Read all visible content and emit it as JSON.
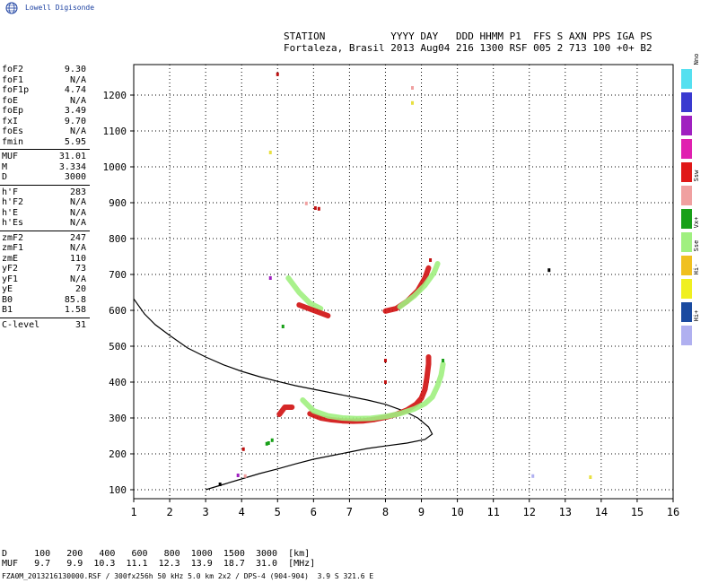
{
  "logo": {
    "text": "Lowell Digisonde"
  },
  "header": {
    "line1": "STATION           YYYY DAY   DDD HHMM P1  FFS S AXN PPS IGA PS",
    "line2": "Fortaleza, Brasil 2013 Aug04 216 1300 RSF 005 2 713 100 +0+ B2"
  },
  "params": {
    "group1": [
      {
        "name": "foF2",
        "value": "9.30"
      },
      {
        "name": "foF1",
        "value": "N/A"
      },
      {
        "name": "foF1p",
        "value": "4.74"
      },
      {
        "name": "foE",
        "value": "N/A"
      },
      {
        "name": "foEp",
        "value": "3.49"
      },
      {
        "name": "fxI",
        "value": "9.70"
      },
      {
        "name": "foEs",
        "value": "N/A"
      },
      {
        "name": "fmin",
        "value": "5.95"
      }
    ],
    "group2": [
      {
        "name": "MUF",
        "value": "31.01"
      },
      {
        "name": "M",
        "value": "3.334"
      },
      {
        "name": "D",
        "value": "3000"
      }
    ],
    "group3": [
      {
        "name": "h'F",
        "value": "283"
      },
      {
        "name": "h'F2",
        "value": "N/A"
      },
      {
        "name": "h'E",
        "value": "N/A"
      },
      {
        "name": "h'Es",
        "value": "N/A"
      }
    ],
    "group4": [
      {
        "name": "zmF2",
        "value": "247"
      },
      {
        "name": "zmF1",
        "value": "N/A"
      },
      {
        "name": "zmE",
        "value": "110"
      },
      {
        "name": "yF2",
        "value": "73"
      },
      {
        "name": "yF1",
        "value": "N/A"
      },
      {
        "name": "yE",
        "value": "20"
      },
      {
        "name": "B0",
        "value": "85.8"
      },
      {
        "name": "B1",
        "value": "1.58"
      }
    ],
    "group5": [
      {
        "name": "C-level",
        "value": "31"
      }
    ]
  },
  "legend": [
    {
      "label": "Nno",
      "color": "#55e0f0"
    },
    {
      "label": "E",
      "color": "#3a3ad0"
    },
    {
      "label": "W",
      "color": "#a020c0"
    },
    {
      "label": "Vo-",
      "color": "#e020b0"
    },
    {
      "label": "Vo+",
      "color": "#e01818"
    },
    {
      "label": "Ssw",
      "color": "#f0a0a0"
    },
    {
      "label": "Vx-",
      "color": "#18a018"
    },
    {
      "label": "Vx+",
      "color": "#a0f080"
    },
    {
      "label": "Sse",
      "color": "#f0c020"
    },
    {
      "label": "Hi-",
      "color": "#f0f020"
    },
    {
      "label": "Nnw",
      "color": "#1a4aa0"
    },
    {
      "label": "Hi+",
      "color": "#b0b0f0"
    }
  ],
  "distance_table": {
    "line1": "D     100   200   400   600   800  1000  1500  3000  [km]",
    "line2": "MUF   9.7   9.9  10.3  11.1  12.3  13.9  18.7  31.0  [MHz]"
  },
  "footer": "FZA0M_2013216130000.RSF / 300fx256h 50 kHz 5.0 km 2x2 / DPS-4 (904-904)  3.9 S 321.6 E",
  "chart_data": {
    "type": "scatter",
    "x_ticks": [
      "1",
      "2",
      "3",
      "4",
      "5",
      "6",
      "7",
      "8",
      "9",
      "10",
      "11",
      "12",
      "13",
      "14",
      "15",
      "16"
    ],
    "y_ticks": [
      "100",
      "200",
      "300",
      "400",
      "500",
      "600",
      "700",
      "800",
      "900",
      "1000",
      "1100",
      "1200"
    ],
    "xlim": [
      1,
      16
    ],
    "ylim": [
      75,
      1285
    ],
    "grid": true,
    "profile": {
      "color": "#000000",
      "points": [
        [
          1.0,
          632
        ],
        [
          1.3,
          590
        ],
        [
          1.6,
          560
        ],
        [
          2.0,
          530
        ],
        [
          2.5,
          495
        ],
        [
          3.0,
          470
        ],
        [
          3.5,
          448
        ],
        [
          4.0,
          430
        ],
        [
          4.5,
          415
        ],
        [
          5.0,
          402
        ],
        [
          5.5,
          390
        ],
        [
          6.0,
          380
        ],
        [
          6.5,
          370
        ],
        [
          7.0,
          360
        ],
        [
          7.5,
          350
        ],
        [
          8.0,
          338
        ],
        [
          8.5,
          320
        ],
        [
          8.9,
          300
        ],
        [
          9.2,
          275
        ],
        [
          9.3,
          255
        ],
        [
          9.1,
          240
        ],
        [
          8.6,
          230
        ],
        [
          8.0,
          222
        ],
        [
          7.5,
          215
        ],
        [
          7.0,
          205
        ],
        [
          6.5,
          195
        ],
        [
          6.0,
          185
        ],
        [
          5.5,
          172
        ],
        [
          5.0,
          158
        ],
        [
          4.5,
          145
        ],
        [
          4.0,
          130
        ],
        [
          3.5,
          115
        ],
        [
          3.0,
          100
        ]
      ]
    },
    "traces": [
      {
        "name": "Vo+",
        "color": "#d01010",
        "points": [
          [
            5.9,
            312
          ],
          [
            6.2,
            300
          ],
          [
            6.5,
            295
          ],
          [
            6.8,
            292
          ],
          [
            7.1,
            291
          ],
          [
            7.4,
            292
          ],
          [
            7.7,
            296
          ],
          [
            8.0,
            302
          ],
          [
            8.3,
            310
          ],
          [
            8.6,
            322
          ],
          [
            8.85,
            338
          ],
          [
            9.0,
            355
          ],
          [
            9.1,
            380
          ],
          [
            9.15,
            410
          ],
          [
            9.2,
            450
          ],
          [
            9.2,
            470
          ]
        ]
      },
      {
        "name": "Vx+",
        "color": "#a0f080",
        "points": [
          [
            5.7,
            350
          ],
          [
            6.0,
            320
          ],
          [
            6.4,
            306
          ],
          [
            6.8,
            300
          ],
          [
            7.2,
            298
          ],
          [
            7.6,
            299
          ],
          [
            8.0,
            304
          ],
          [
            8.4,
            312
          ],
          [
            8.8,
            325
          ],
          [
            9.1,
            340
          ],
          [
            9.3,
            358
          ],
          [
            9.45,
            390
          ],
          [
            9.55,
            420
          ],
          [
            9.6,
            450
          ]
        ]
      },
      {
        "name": "Vo+",
        "color": "#d01010",
        "points": [
          [
            8.0,
            598
          ],
          [
            8.3,
            605
          ],
          [
            8.6,
            625
          ],
          [
            8.9,
            655
          ],
          [
            9.1,
            690
          ],
          [
            9.2,
            718
          ]
        ]
      },
      {
        "name": "Vx+",
        "color": "#a0f080",
        "points": [
          [
            8.4,
            610
          ],
          [
            8.8,
            640
          ],
          [
            9.1,
            670
          ],
          [
            9.35,
            705
          ],
          [
            9.45,
            730
          ]
        ]
      },
      {
        "name": "Vo+",
        "color": "#d01010",
        "points": [
          [
            5.05,
            310
          ],
          [
            5.2,
            330
          ],
          [
            5.4,
            330
          ]
        ]
      },
      {
        "name": "Vx+",
        "color": "#a0f080",
        "points": [
          [
            5.3,
            690
          ],
          [
            5.6,
            650
          ],
          [
            5.9,
            620
          ],
          [
            6.2,
            605
          ]
        ]
      },
      {
        "name": "Vo+",
        "color": "#d01010",
        "points": [
          [
            5.6,
            615
          ],
          [
            6.0,
            600
          ],
          [
            6.4,
            585
          ]
        ]
      }
    ],
    "dots": [
      {
        "name": "Vo+",
        "color": "#c01010",
        "points": [
          [
            5.0,
            1258
          ],
          [
            6.05,
            885
          ],
          [
            6.15,
            883
          ],
          [
            4.05,
            213
          ],
          [
            8.0,
            460
          ],
          [
            8.0,
            400
          ],
          [
            9.25,
            740
          ]
        ]
      },
      {
        "name": "Vx-",
        "color": "#18a018",
        "points": [
          [
            4.75,
            230
          ],
          [
            4.85,
            238
          ],
          [
            5.15,
            555
          ],
          [
            9.6,
            460
          ],
          [
            4.7,
            228
          ]
        ]
      },
      {
        "name": "W",
        "color": "#a020c0",
        "points": [
          [
            4.8,
            690
          ],
          [
            3.9,
            140
          ]
        ]
      },
      {
        "name": "Hi-",
        "color": "#e8e040",
        "points": [
          [
            4.8,
            1040
          ],
          [
            8.75,
            1178
          ],
          [
            13.7,
            135
          ]
        ]
      },
      {
        "name": "Ssw",
        "color": "#f0a0a0",
        "points": [
          [
            8.75,
            1220
          ],
          [
            5.8,
            898
          ],
          [
            4.1,
            138
          ]
        ]
      },
      {
        "name": "Hi+",
        "color": "#b0b0f0",
        "points": [
          [
            12.1,
            138
          ]
        ]
      },
      {
        "name": "Nno",
        "color": "#000000",
        "points": [
          [
            12.55,
            712
          ],
          [
            3.4,
            115
          ]
        ]
      }
    ]
  }
}
